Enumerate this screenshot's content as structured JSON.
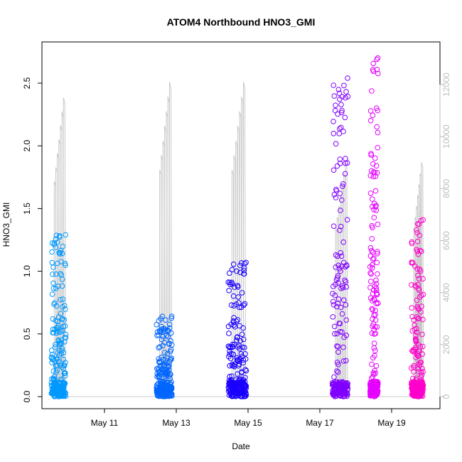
{
  "chart_data": {
    "type": "scatter",
    "title": "ATOM4 Northbound HNO3_GMI",
    "xlabel": "Date",
    "ylabel": "HNO3_GMI",
    "x_ticks": [
      "May 11",
      "May 13",
      "May 15",
      "May 17",
      "May 19"
    ],
    "y_ticks": [
      "0.0",
      "0.5",
      "1.0",
      "1.5",
      "2.0",
      "2.5"
    ],
    "y2_ticks": [
      "0",
      "2000",
      "4000",
      "6000",
      "8000",
      "10000",
      "12000"
    ],
    "ylim": [
      0,
      2.7
    ],
    "y2lim": [
      0,
      12100
    ],
    "grid": false,
    "legend": "none",
    "flights": [
      {
        "day_start": 9.52,
        "day_end": 9.92,
        "max_value": 1.29,
        "altitude_max": 11500,
        "color": "#0099ff"
      },
      {
        "day_start": 12.45,
        "day_end": 12.88,
        "max_value": 0.64,
        "altitude_max": 12100,
        "color": "#0066ff"
      },
      {
        "day_start": 14.45,
        "day_end": 14.95,
        "max_value": 1.07,
        "altitude_max": 12100,
        "color": "#1a00ff"
      },
      {
        "day_start": 17.35,
        "day_end": 17.78,
        "max_value": 2.54,
        "altitude_max": 9000,
        "color": "#8000ff"
      },
      {
        "day_start": 18.4,
        "day_end": 18.62,
        "max_value": 2.7,
        "altitude_max": 0,
        "color": "#e600ff"
      },
      {
        "day_start": 19.55,
        "day_end": 19.88,
        "max_value": 1.41,
        "altitude_max": 9000,
        "color": "#ff00cc"
      }
    ]
  }
}
